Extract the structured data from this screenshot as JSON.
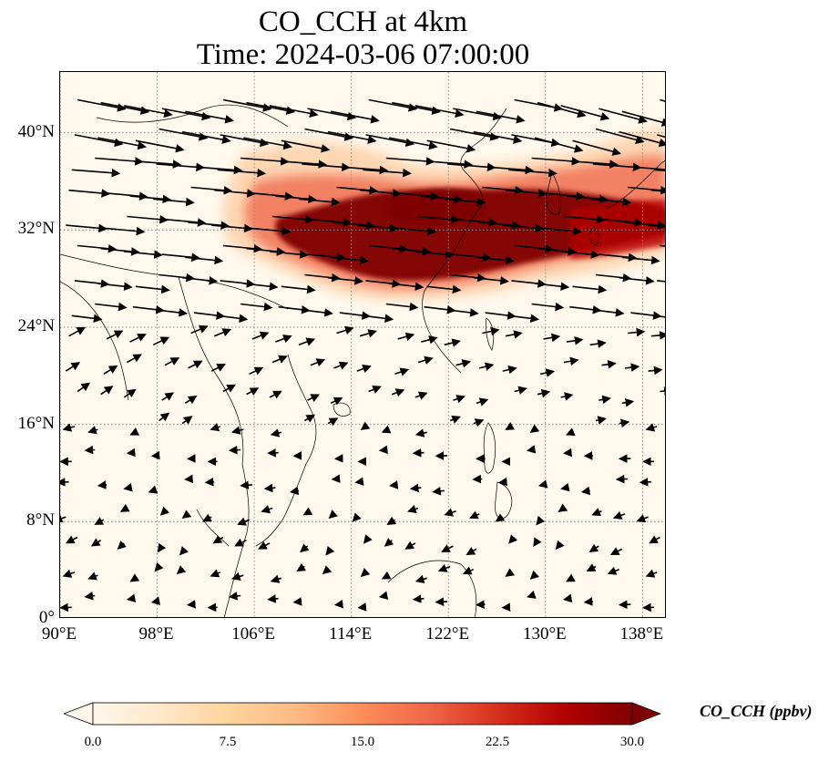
{
  "title_line1": "CO_CCH at 4km",
  "title_line2": "Time: 2024-03-06 07:00:00",
  "map": {
    "lon_range": [
      90,
      140
    ],
    "lat_range": [
      0,
      45
    ],
    "lat_ticks": [
      {
        "value": 40,
        "label": "40°N"
      },
      {
        "value": 32,
        "label": "32°N"
      },
      {
        "value": 24,
        "label": "24°N"
      },
      {
        "value": 16,
        "label": "16°N"
      },
      {
        "value": 8,
        "label": "8°N"
      },
      {
        "value": 0,
        "label": "0°"
      }
    ],
    "lon_ticks": [
      {
        "value": 90,
        "label": "90°E"
      },
      {
        "value": 98,
        "label": "98°E"
      },
      {
        "value": 106,
        "label": "106°E"
      },
      {
        "value": 114,
        "label": "114°E"
      },
      {
        "value": 122,
        "label": "122°E"
      },
      {
        "value": 130,
        "label": "130°E"
      },
      {
        "value": 138,
        "label": "138°E"
      }
    ],
    "gridlines": true,
    "background_color": "#fff8ec",
    "coastline_color": "#000000",
    "gridline_color": "#888888"
  },
  "colorbar": {
    "label": "CO_CCH (ppbv)",
    "min": 0,
    "max": 30,
    "ticks": [
      "0.0",
      "7.5",
      "15.0",
      "22.5",
      "30.0"
    ],
    "colormap": "OrRd",
    "extend": "both",
    "colors": [
      "#fff7ec",
      "#fee8c8",
      "#fdd49e",
      "#fdbb84",
      "#fc8d59",
      "#ef6548",
      "#d7301f",
      "#b30000",
      "#7f0000"
    ]
  },
  "plume": {
    "description_color_core": "#7f0000",
    "description_color_edge": "#fdbb84"
  }
}
